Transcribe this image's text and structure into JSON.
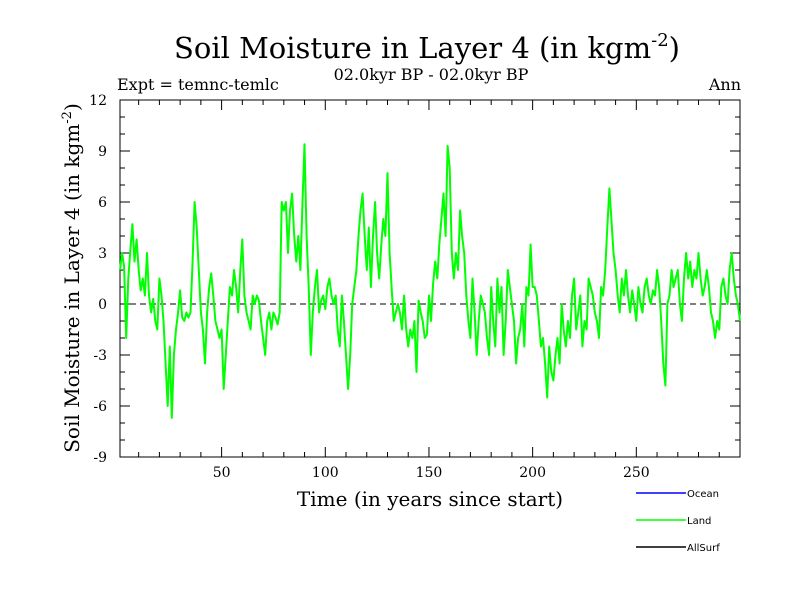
{
  "chart_data": {
    "type": "line",
    "title_main": "Soil Moisture in Layer 4 (in kgm",
    "title_sup": "-2",
    "title_close": ")",
    "subtitle": "02.0kyr BP - 02.0kyr BP",
    "expt_label": "Expt = temnc-temlc",
    "season_label": "Ann",
    "xlabel": "Time (in years since start)",
    "ylabel_main": "Soil Moisture in Layer 4 (in kgm",
    "ylabel_sup": "-2",
    "ylabel_close": ")",
    "xlim": [
      1,
      300
    ],
    "ylim": [
      -9,
      12
    ],
    "xticks": [
      50,
      100,
      150,
      200,
      250
    ],
    "yticks": [
      -9,
      -6,
      -3,
      0,
      3,
      6,
      9,
      12
    ],
    "reference_line": 0,
    "legend": [
      {
        "name": "Ocean",
        "color": "#0000ff"
      },
      {
        "name": "Land",
        "color": "#00ff00"
      },
      {
        "name": "AllSurf",
        "color": "#000000"
      }
    ],
    "series": [
      {
        "name": "Land",
        "color": "#00ff00",
        "x_start": 1,
        "x_step": 1,
        "values": [
          2.0,
          3.0,
          2.2,
          -2.0,
          1.5,
          3.2,
          4.7,
          2.5,
          3.8,
          2.0,
          0.8,
          1.5,
          0.5,
          3.0,
          0.5,
          -0.5,
          0.3,
          -1.0,
          -1.5,
          1.5,
          0.5,
          -1.0,
          -3.5,
          -6.0,
          -2.5,
          -6.7,
          -3.0,
          -1.5,
          -0.5,
          0.8,
          -0.8,
          -1.0,
          -0.5,
          -0.8,
          -0.5,
          2.5,
          6.0,
          4.5,
          2.0,
          -0.5,
          -1.5,
          -3.5,
          -0.5,
          1.0,
          1.8,
          0.5,
          -1.0,
          -1.5,
          -2.0,
          -1.5,
          -5.0,
          -3.0,
          -1.0,
          1.0,
          0.5,
          2.0,
          1.0,
          -0.5,
          2.0,
          3.8,
          0.5,
          -0.5,
          -1.0,
          -1.5,
          0.5,
          0.0,
          0.5,
          0.2,
          -1.0,
          -2.0,
          -3.0,
          -1.0,
          -0.5,
          -1.5,
          -0.5,
          -0.8,
          -1.2,
          -0.5,
          6.0,
          5.5,
          6.0,
          3.0,
          5.5,
          6.5,
          4.0,
          2.5,
          4.0,
          2.0,
          6.0,
          9.4,
          4.0,
          1.0,
          -3.0,
          -0.5,
          1.0,
          2.0,
          -0.5,
          0.2,
          0.5,
          -0.3,
          1.0,
          1.5,
          0.5,
          0.0,
          0.5,
          -1.5,
          -2.5,
          0.5,
          -1.0,
          -3.0,
          -5.0,
          -3.0,
          0.0,
          1.0,
          2.0,
          4.0,
          5.5,
          6.5,
          4.0,
          2.0,
          4.5,
          1.0,
          4.0,
          6.0,
          3.0,
          1.5,
          3.5,
          5.0,
          4.0,
          7.7,
          3.0,
          1.0,
          -1.0,
          -0.5,
          0.0,
          -0.5,
          -1.5,
          0.5,
          -1.5,
          -2.5,
          -1.5,
          -2.0,
          -1.0,
          -4.0,
          0.2,
          -0.5,
          -1.0,
          -2.0,
          -1.8,
          0.5,
          -1.0,
          1.2,
          2.5,
          1.5,
          3.5,
          5.0,
          6.5,
          4.0,
          9.3,
          8.0,
          3.0,
          1.5,
          3.0,
          2.0,
          5.5,
          4.0,
          3.0,
          0.5,
          -1.0,
          -2.0,
          1.5,
          -0.5,
          -3.0,
          -1.0,
          0.5,
          0.0,
          -0.5,
          -2.0,
          -3.0,
          1.0,
          -1.0,
          -2.5,
          1.5,
          -0.5,
          1.0,
          -3.0,
          -1.0,
          2.0,
          1.0,
          0.0,
          -1.0,
          -3.5,
          -2.0,
          -1.5,
          0.0,
          -2.5,
          1.0,
          0.5,
          3.5,
          1.0,
          1.0,
          0.5,
          -1.0,
          -2.5,
          -2.0,
          -3.5,
          -5.5,
          -2.5,
          -4.0,
          -4.5,
          -3.0,
          -2.0,
          -3.5,
          0.0,
          -1.5,
          -2.5,
          -1.0,
          -2.0,
          0.5,
          1.5,
          -1.5,
          -0.5,
          0.5,
          -2.5,
          -1.0,
          -1.5,
          1.5,
          1.0,
          0.5,
          -0.5,
          -1.0,
          -2.0,
          1.0,
          0.5,
          2.0,
          4.5,
          6.8,
          5.0,
          3.0,
          2.0,
          0.5,
          -0.5,
          1.5,
          0.5,
          2.0,
          0.5,
          -0.5,
          0.8,
          0.0,
          -1.0,
          1.0,
          0.0,
          -0.5,
          1.0,
          1.5,
          0.5,
          0.0,
          0.8,
          0.5,
          2.0,
          1.0,
          -1.0,
          -3.5,
          -4.8,
          0.0,
          0.5,
          2.0,
          1.0,
          1.5,
          2.0,
          0.0,
          -1.0,
          1.5,
          3.0,
          1.5,
          2.5,
          1.0,
          2.0,
          1.5,
          3.0,
          1.5,
          0.5,
          1.0,
          2.0,
          1.0,
          -0.5,
          -1.0,
          -2.0,
          -1.0,
          -1.5,
          1.0,
          1.5,
          0.5,
          0.0,
          2.0,
          3.0,
          1.5,
          0.5,
          0.0,
          -1.0
        ]
      }
    ]
  }
}
